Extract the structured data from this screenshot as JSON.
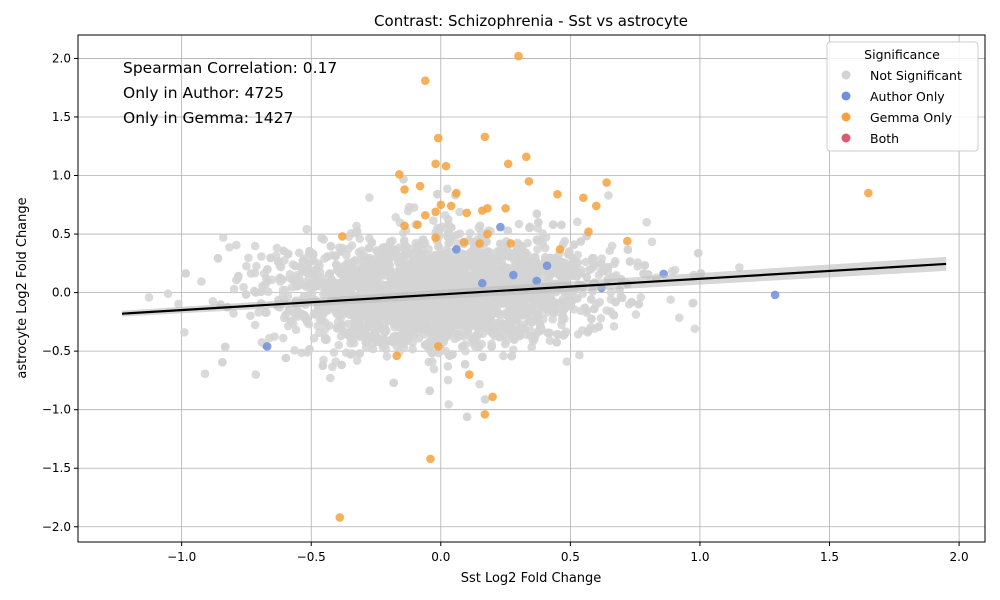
{
  "chart_data": {
    "type": "scatter",
    "title": "Contrast: Schizophrenia - Sst vs astrocyte",
    "xlabel": "Sst Log2 Fold Change",
    "ylabel": "astrocyte Log2 Fold Change",
    "xlim": [
      -1.4,
      2.1
    ],
    "ylim": [
      -2.13,
      2.2
    ],
    "xticks": [
      -1.0,
      -0.5,
      0.0,
      0.5,
      1.0,
      1.5,
      2.0
    ],
    "xtick_labels": [
      "−1.0",
      "−0.5",
      "0.0",
      "0.5",
      "1.0",
      "1.5",
      "2.0"
    ],
    "yticks": [
      -2.0,
      -1.5,
      -1.0,
      -0.5,
      0.0,
      0.5,
      1.0,
      1.5,
      2.0
    ],
    "ytick_labels": [
      "−2.0",
      "−1.5",
      "−1.0",
      "−0.5",
      "0.0",
      "0.5",
      "1.0",
      "1.5",
      "2.0"
    ],
    "grid": true,
    "legend_placement": "top-right",
    "annotations": [
      "Spearman Correlation: 0.17",
      "Only in Author: 4725",
      "Only in Gemma: 1427"
    ],
    "legend": {
      "title": "Significance",
      "entries": [
        "Not Significant",
        "Author Only",
        "Gemma Only",
        "Both"
      ]
    },
    "colors": {
      "not_significant": "#d3d3d3",
      "author_only": "#6f8fdc",
      "gemma_only": "#f5a23c",
      "both": "#dc5a73",
      "regression": "#000000"
    },
    "regression_line": {
      "x": [
        -1.23,
        1.95
      ],
      "y": [
        -0.18,
        0.245
      ]
    },
    "series": [
      {
        "name": "Gemma Only",
        "points": [
          [
            0.3,
            2.02
          ],
          [
            -0.06,
            1.81
          ],
          [
            0.17,
            1.33
          ],
          [
            -0.01,
            1.32
          ],
          [
            0.33,
            1.16
          ],
          [
            -0.02,
            1.1
          ],
          [
            0.02,
            1.08
          ],
          [
            0.26,
            1.1
          ],
          [
            -0.16,
            1.01
          ],
          [
            0.34,
            0.95
          ],
          [
            0.64,
            0.94
          ],
          [
            -0.08,
            0.91
          ],
          [
            -0.14,
            0.88
          ],
          [
            0.06,
            0.85
          ],
          [
            0.45,
            0.84
          ],
          [
            1.65,
            0.85
          ],
          [
            0.55,
            0.81
          ],
          [
            0.0,
            0.75
          ],
          [
            0.04,
            0.74
          ],
          [
            0.6,
            0.74
          ],
          [
            0.18,
            0.72
          ],
          [
            0.25,
            0.72
          ],
          [
            -0.02,
            0.69
          ],
          [
            0.1,
            0.68
          ],
          [
            0.16,
            0.7
          ],
          [
            -0.06,
            0.66
          ],
          [
            -0.09,
            0.58
          ],
          [
            -0.14,
            0.57
          ],
          [
            0.57,
            0.52
          ],
          [
            0.18,
            0.5
          ],
          [
            -0.38,
            0.48
          ],
          [
            -0.02,
            0.47
          ],
          [
            0.72,
            0.44
          ],
          [
            0.09,
            0.43
          ],
          [
            0.15,
            0.42
          ],
          [
            0.27,
            0.42
          ],
          [
            0.46,
            0.37
          ],
          [
            -0.01,
            -0.46
          ],
          [
            0.11,
            -0.7
          ],
          [
            0.17,
            -1.04
          ],
          [
            0.2,
            -0.89
          ],
          [
            -0.04,
            -1.42
          ],
          [
            -0.39,
            -1.92
          ],
          [
            -0.17,
            -0.54
          ]
        ]
      },
      {
        "name": "Author Only",
        "points": [
          [
            -0.67,
            -0.46
          ],
          [
            1.29,
            -0.02
          ],
          [
            0.86,
            0.16
          ],
          [
            0.23,
            0.56
          ],
          [
            0.41,
            0.23
          ],
          [
            0.28,
            0.15
          ],
          [
            0.37,
            0.1
          ],
          [
            0.62,
            0.04
          ],
          [
            0.06,
            0.37
          ],
          [
            0.16,
            0.08
          ]
        ]
      },
      {
        "name": "Both",
        "points": []
      }
    ]
  }
}
